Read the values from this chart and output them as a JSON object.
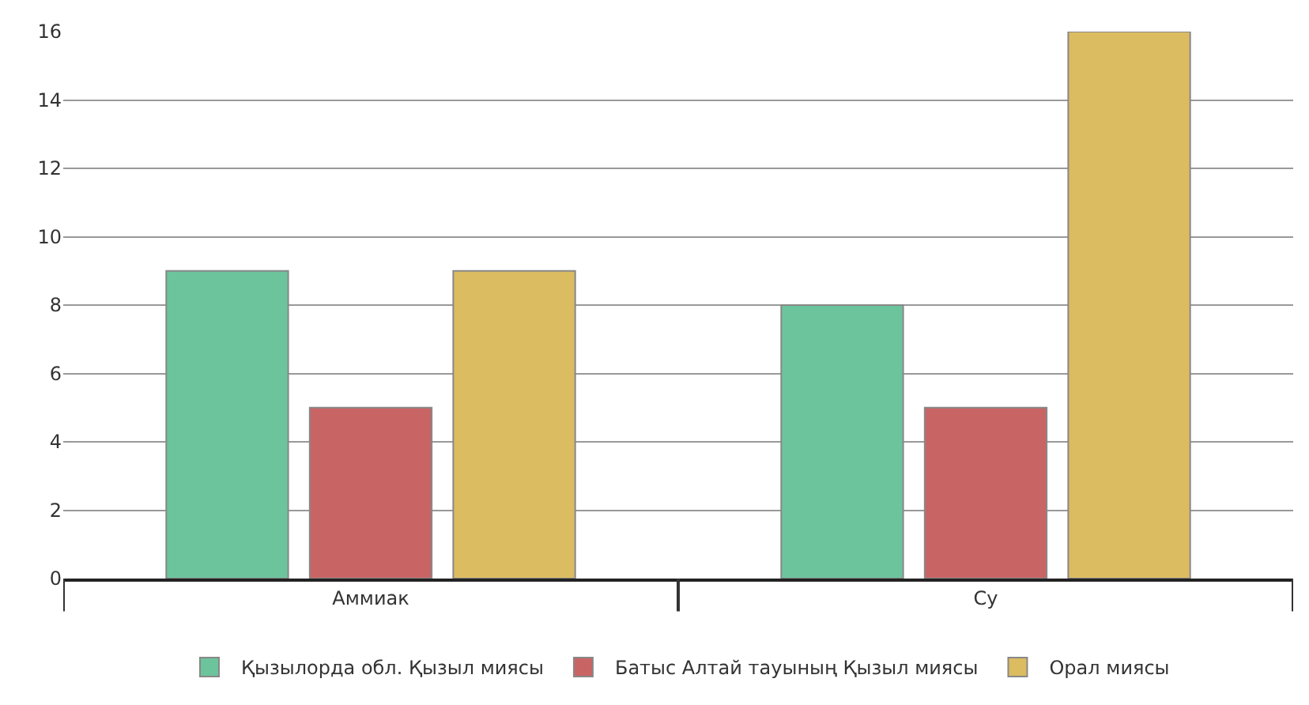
{
  "chart_data": {
    "type": "bar",
    "categories": [
      "Аммиак",
      "Су"
    ],
    "series": [
      {
        "name": "Қызылорда обл. Қызыл миясы",
        "color": "#6cc49c",
        "values": [
          9,
          8
        ]
      },
      {
        "name": "Батыс Алтай тауының Қызыл миясы",
        "color": "#c96464",
        "values": [
          5,
          5
        ]
      },
      {
        "name": "Орал миясы",
        "color": "#dcbc60",
        "values": [
          9,
          16
        ]
      }
    ],
    "ylim": [
      0,
      16
    ],
    "yticks": [
      0,
      2,
      4,
      6,
      8,
      10,
      12,
      14,
      16
    ],
    "grid": "y",
    "legend": "bottom"
  }
}
